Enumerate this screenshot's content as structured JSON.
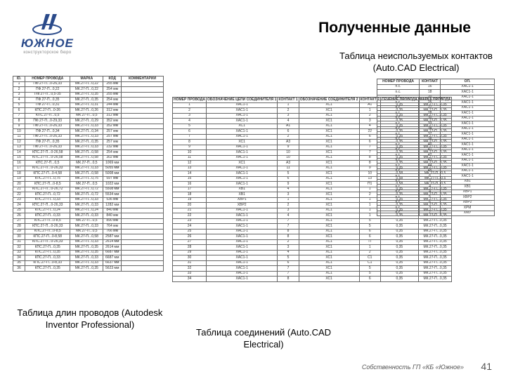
{
  "logo": {
    "text": "ЮЖНОЕ",
    "sub": "конструкторское бюро",
    "color": "#2a4a8a"
  },
  "title": "Полученные данные",
  "subtitles": {
    "s1": "Таблица неиспользуемых контактов (Auto.CAD Electrical)",
    "s2": "Таблица длин проводов (Autodesk Inventor Professional)",
    "s3": "Таблица соединений (Auto.CAD Electrical)"
  },
  "attribution": "Собственность ГП «КБ «Южное»",
  "page": "41",
  "left_table": {
    "headers": [
      "ID.",
      "НОМЕР ПРОВОДА",
      "МАРКА",
      "КОД",
      "КОММЕНТАРИИ"
    ],
    "rows": [
      [
        "1",
        "ПФ.27-П...0-26,33",
        "МК.27-П...0,22",
        "255 мм",
        ""
      ],
      [
        "2",
        "ПФ.27-П...0,22",
        "МК.27-П...0,22",
        "254 мм",
        ""
      ],
      [
        "3",
        "ПФ.27-П...0,5-35",
        "МК.27-П...0,35",
        "255 мм",
        ""
      ],
      [
        "4",
        "ПФ.27-П...0,35",
        "МК.27-П...0,35",
        "254 мм",
        ""
      ],
      [
        "5",
        "ПФ.27-П...0,31",
        "МК.27-П...0,31",
        "244 мм",
        ""
      ],
      [
        "6",
        "КПС.27-П...0-26",
        "МК.27-П...0,26",
        "312 мм",
        ""
      ],
      [
        "7",
        "КПС.27-П...0,5",
        "МК.27-П...0,5",
        "312 мм",
        ""
      ],
      [
        "8",
        "ПФ.27-П...0-29,33",
        "МК.27-П...0,29",
        "352 мм",
        ""
      ],
      [
        "9",
        "ПФ.27-П...0-26,33",
        "МК.27-П...0,33",
        "352 мм",
        ""
      ],
      [
        "10",
        "ПФ.27-П...0,34",
        "МК.27-П...0,34",
        "257 мм",
        ""
      ],
      [
        "11",
        "ПФ.27-П...0-26,33",
        "МК.27-П...0,33",
        "257 мм",
        ""
      ],
      [
        "12",
        "ПФ.27-П...0,35",
        "МК.27-П...0,35",
        "257 мм",
        ""
      ],
      [
        "13",
        "ПФ.27-П...0-26,33",
        "МК.27-П...0,33",
        "232 мм",
        ""
      ],
      [
        "14",
        "КПС.27-П...0-26,58",
        "МК.27-П...0,58",
        "254 мм",
        ""
      ],
      [
        "15",
        "КПС.27-П...0-26,58",
        "МК.27-П...0,58",
        "302 мм",
        ""
      ],
      [
        "16",
        "КПС.27-П...0,5",
        "МК.27-П...0,5",
        "1069 мм",
        ""
      ],
      [
        "17",
        "КПС.27-П...0-26,33",
        "МК.27-П...0,33",
        "5055 мм",
        ""
      ],
      [
        "18",
        "КПС.27-П...0-4,58",
        "МК.27-П...0,58",
        "5008 мм",
        ""
      ],
      [
        "19",
        "КПС.27-П...0,75",
        "МК.27-П...0,75",
        "597 мм",
        ""
      ],
      [
        "20",
        "КПС.27-П...0-8,5",
        "МК.27-П...0,5",
        "1022 мм",
        ""
      ],
      [
        "21",
        "КПС.27-П...0-26,72",
        "МК.27-П...0,72",
        "5508 мм",
        ""
      ],
      [
        "22",
        "КПС.27-П...0,72",
        "МК.27-П...0,72",
        "5534 мм",
        ""
      ],
      [
        "23",
        "КПС.27-П...0,33",
        "МК.27-П...0,33",
        "536 мм",
        ""
      ],
      [
        "24",
        "КПС.27-П...0-26,33",
        "МК.27-П...0,33",
        "1282 мм",
        ""
      ],
      [
        "25",
        "КПС.27-П...0,24",
        "МК.27-П...0,24",
        "840 мм",
        ""
      ],
      [
        "26",
        "КПС.27-П...0,33",
        "МК.27-П...0,33",
        "840 мм",
        ""
      ],
      [
        "27",
        "КПС.27-П...0-8,5",
        "МК.27-П...0,5",
        "890 мм",
        ""
      ],
      [
        "28",
        "КПС.27-П...0-26,33",
        "МК.27-П...0,33",
        "764 мм",
        ""
      ],
      [
        "29",
        "КПС.27-П...0-8,5",
        "МК.27-П...0,5",
        "766 мм",
        ""
      ],
      [
        "30",
        "КПС.27-П...0-8,58",
        "МК.27-П...0,58",
        "2587 мм",
        ""
      ],
      [
        "31",
        "КПС.27-П...0-26,33",
        "МК.27-П...0,33",
        "2614 мм",
        ""
      ],
      [
        "32",
        "КПС.27-П...0,35",
        "МК.27-П...0,35",
        "2614 мм",
        ""
      ],
      [
        "33",
        "КПС.27-П...0,35",
        "МК.27-П...0,35",
        "6687 мм",
        ""
      ],
      [
        "34",
        "КПС.27-П...0,33",
        "МК.27-П...0,33",
        "6687 мм",
        ""
      ],
      [
        "35",
        "КПС.27-П...0-8,33",
        "МК.27-П...0,33",
        "6637 мм",
        ""
      ],
      [
        "36",
        "КПС.27-П...0,35",
        "МК.27-П...0,35",
        "5623 мм",
        ""
      ]
    ]
  },
  "center_table": {
    "headers": [
      "НОМЕР ПРОВОДА",
      "ОБОЗНАЧЕНИЕ ЦЕПИ СОЕДИНИТЕЛЯ 1",
      "КОНТАКТ 1",
      "ОБОЗНАЧЕНИЕ СОЕДИНИТЕЛЯ 2",
      "КОНТАКТ 2",
      "СЕЧЕНИЕ ПРОВОДА",
      "МАРКА ПРОВОДА"
    ],
    "rows": [
      [
        "1",
        "ХАС1-1",
        "1",
        "ХС1",
        "А1",
        "0,35",
        "МК.27-П...0,35"
      ],
      [
        "2",
        "ХАС1-1",
        "2",
        "ХС1",
        "1",
        "0,35",
        "МК.27-П...0,35"
      ],
      [
        "3",
        "ХАС1-1",
        "3",
        "ХС1",
        "2",
        "0,35",
        "МК.27-П...0,35"
      ],
      [
        "4",
        "ХАС1-1",
        "4",
        "ХС1",
        "3",
        "0,35",
        "МК.27-П...0,35"
      ],
      [
        "5",
        "ХС1",
        "А1",
        "ХС1",
        "4",
        "0,35",
        "МК.27-П...0,35"
      ],
      [
        "6",
        "ХАС1-1",
        "6",
        "ХС1",
        "22",
        "0,35",
        "МК.27-П...0,35"
      ],
      [
        "7",
        "ХАС1-1",
        "2",
        "ХС1",
        "6",
        "0,35",
        "МК.27-П...0,35"
      ],
      [
        "8",
        "ХС1",
        "А3",
        "ХС1",
        "6",
        "0,35",
        "МК.27-П...0,35"
      ],
      [
        "9",
        "ХАС1-1",
        "9",
        "ХС1",
        "7",
        "0,35",
        "МК.27-П...0,35"
      ],
      [
        "10",
        "ХАС1-1",
        "10",
        "ХС1",
        "7",
        "0,35",
        "МК.27-П...0,35"
      ],
      [
        "11",
        "ХАС1-1",
        "10",
        "ХС1",
        "8",
        "0,35",
        "МК.27-П...0,35"
      ],
      [
        "12",
        "ХС1",
        "А3",
        "ХС1",
        "8",
        "0,35",
        "МК.27-П...0,35"
      ],
      [
        "13",
        "ХАС1-1",
        "11",
        "ХС1",
        "9",
        "0,35",
        "МК.27-П...0,35"
      ],
      [
        "14",
        "ХАС1-1",
        "5",
        "ХС1",
        "10",
        "0,58",
        "МК.27-П...0,5"
      ],
      [
        "15",
        "ХАС1-1",
        "6",
        "ХС1",
        "13",
        "0,58",
        "МК.27-П...0,5"
      ],
      [
        "16",
        "ХАС1-1",
        "9",
        "ХС1",
        "П1",
        "0,58",
        "МК.27-П...0,5"
      ],
      [
        "17",
        "ХВ1",
        "4",
        "ХС1",
        "1",
        "0,35",
        "МК.27-П...0,35"
      ],
      [
        "18",
        "ХВ1",
        "3",
        "ХС1",
        "2",
        "0,35",
        "МК.27-П...0,35"
      ],
      [
        "19",
        "ХВР1",
        "1",
        "ХС1",
        "1",
        "0,35",
        "МК.27-П...0,35"
      ],
      [
        "20",
        "ХВР2",
        "2",
        "ХС1",
        "1",
        "0,35",
        "МК.27-П...0,35"
      ],
      [
        "21",
        "ХАС1-1",
        "3",
        "ХС1",
        "1",
        "0,35",
        "МК.27-П...0,35"
      ],
      [
        "22",
        "ХАС1-1",
        "4",
        "ХС1",
        "1",
        "0,35",
        "МК.27-П...0,35"
      ],
      [
        "23",
        "ХАС1-1",
        "7",
        "ХС1",
        "5",
        "0,35",
        "МК.27-П...0,35"
      ],
      [
        "24",
        "ХАС1-1",
        "7",
        "ХС1",
        "5",
        "0,35",
        "МК.27-П...0,35"
      ],
      [
        "25",
        "ХАС1-1",
        "8",
        "ХС1",
        "6",
        "0,35",
        "МК.27-П...0,35"
      ],
      [
        "26",
        "ХАС1-1",
        "8",
        "ХС1",
        "6",
        "0,35",
        "МК.27-П...0,35"
      ],
      [
        "27",
        "ХАС1-1",
        "2",
        "ХС1",
        "П",
        "0,35",
        "МК.27-П...0,35"
      ],
      [
        "28",
        "ХАС1-1",
        "3",
        "ХС1",
        "1",
        "0,35",
        "МК.27-П...0,35"
      ],
      [
        "29",
        "ХАС1-1",
        "4",
        "ХС1",
        "2",
        "0,35",
        "МК.27-П...0,35"
      ],
      [
        "30",
        "ХАС1-1",
        "5",
        "ХС1",
        "С1",
        "0,35",
        "МК.27-П...0,35"
      ],
      [
        "31",
        "ХАС1-1",
        "6",
        "ХС1",
        "С1",
        "0,35",
        "МК.27-П...0,35"
      ],
      [
        "32",
        "ХАС1-1",
        "7",
        "ХС1",
        "5",
        "0,35",
        "МК.27-П...0,35"
      ],
      [
        "33",
        "ХАС1-1",
        "7",
        "ХС1",
        "5",
        "0,35",
        "МК.27-П...0,35"
      ],
      [
        "34",
        "ХАС1-1",
        "8",
        "ХС1",
        "6",
        "0,35",
        "МК.27-П...0,35"
      ]
    ]
  },
  "right_table": {
    "headers": [
      "НОМЕР ПРОВОДА",
      "КОНТАКТ",
      "ОП."
    ],
    "rows": [
      [
        "n.c.",
        "16",
        "ХАС1-1"
      ],
      [
        "n.c.",
        "18",
        "ХАС1-1"
      ],
      [
        "n.c.",
        "20",
        "ХАС1-1"
      ],
      [
        "n.c.",
        "25",
        "ХАС1-1"
      ],
      [
        "n.c.",
        "27",
        "ХАС1-1"
      ],
      [
        "n.c.",
        "28",
        "ХАС1-1"
      ],
      [
        "n.c.",
        "30",
        "ХАС1-1"
      ],
      [
        "n.c.",
        "33",
        "ХАС1-1"
      ],
      [
        "n.c.",
        "34",
        "ХАС1-1"
      ],
      [
        "n.c.",
        "37",
        "ХАС1-1"
      ],
      [
        "n.c.",
        "38",
        "ХАС1-1"
      ],
      [
        "n.c.",
        "40",
        "ХАС1-1"
      ],
      [
        "n.c.",
        "41",
        "ХАС1-1"
      ],
      [
        "n.c.",
        "42",
        "ХАС1-1"
      ],
      [
        "n.c.",
        "43",
        "ХАС1-1"
      ],
      [
        "n.c.",
        "44",
        "ХАС1-1"
      ],
      [
        "n.c.",
        "45",
        "ХАС1-1"
      ],
      [
        "n.c.",
        "6",
        "ХАС1-1"
      ],
      [
        "n.c.",
        "3",
        "ХВ1"
      ],
      [
        "n.c.",
        "4",
        "ХВ1"
      ],
      [
        "n.c.",
        "4",
        "ХВР1"
      ],
      [
        "n.c.",
        "5",
        "ХВР2"
      ],
      [
        "n.c.",
        "6",
        "ХВР2"
      ],
      [
        "n.c.",
        "3",
        "ХРМ"
      ],
      [
        "n.c.",
        "7",
        "ХМУ"
      ]
    ]
  }
}
